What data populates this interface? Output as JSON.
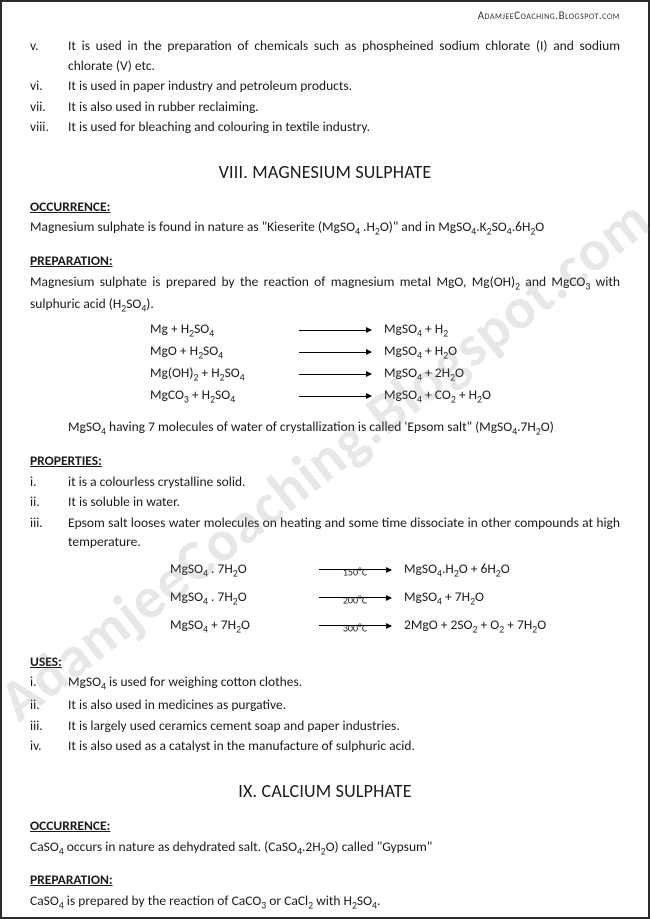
{
  "header_url": "AdamjeeCoaching.Blogspot.com",
  "watermark": "AdamjeeCoaching.Blogspot.com",
  "top_list": [
    {
      "num": "v.",
      "text": "It is used in the preparation of chemicals such as phospheined sodium chlorate (I) and sodium chlorate (V) etc."
    },
    {
      "num": "vi.",
      "text": "It is used in paper industry and petroleum products."
    },
    {
      "num": "vii.",
      "text": "It is also used in rubber reclaiming."
    },
    {
      "num": "viii.",
      "text": "It is used for bleaching and colouring in textile industry."
    }
  ],
  "section8": {
    "title": "VIII. MAGNESIUM SULPHATE",
    "occurrence_head": "OCCURRENCE:",
    "occurrence_text": "Magnesium sulphate is found in nature as \"Kieserite (MgSO4 .H2O)\" and in MgSO4.K2SO4.6H2O",
    "preparation_head": "PREPARATION:",
    "preparation_text": "Magnesium sulphate is prepared by the reaction of magnesium metal MgO, Mg(OH)2 and MgCO3 with sulphuric acid (H2SO4).",
    "equations": [
      {
        "left": "Mg + H2SO4",
        "right": "MgSO4 + H2"
      },
      {
        "left": "MgO + H2SO4",
        "right": "MgSO4 + H2O"
      },
      {
        "left": "Mg(OH)2 + H2SO4",
        "right": "MgSO4 + 2H2O"
      },
      {
        "left": "MgCO3 + H2SO4",
        "right": "MgSO4 + CO2 + H2O"
      }
    ],
    "note": "MgSO4 having 7 molecules of water of crystallization is called 'Epsom salt\" (MgSO4.7H2O)",
    "properties_head": "PROPERTIES:",
    "properties": [
      {
        "num": "i.",
        "text": "it is a colourless crystalline solid."
      },
      {
        "num": "ii.",
        "text": "It is soluble in water."
      },
      {
        "num": "iii.",
        "text": "Epsom salt looses water molecules on heating and some time dissociate in other compounds at high temperature."
      }
    ],
    "equations2": [
      {
        "left": "MgSO4 . 7H2O",
        "label": "150°C",
        "right": "MgSO4.H2O + 6H2O"
      },
      {
        "left": "MgSO4 . 7H2O",
        "label": "200°C",
        "right": "MgSO4 + 7H2O"
      },
      {
        "left": "MgSO4 + 7H2O",
        "label": "300°C",
        "right": "2MgO + 2SO2 + O2 + 7H2O"
      }
    ],
    "uses_head": "USES:",
    "uses": [
      {
        "num": "i.",
        "text": "MgSO4 is used for weighing cotton clothes."
      },
      {
        "num": "ii.",
        "text": "It is also used in medicines as purgative."
      },
      {
        "num": "iii.",
        "text": "It is largely used ceramics cement soap and paper industries."
      },
      {
        "num": "iv.",
        "text": "It is also used as a catalyst in the manufacture of sulphuric acid."
      }
    ]
  },
  "section9": {
    "title": "IX.   CALCIUM SULPHATE",
    "occurrence_head": "OCCURRENCE:",
    "occurrence_text": "CaSO4 occurs in nature as dehydrated salt. (CaSO4.2H2O) called \"Gypsum\"",
    "preparation_head": "PREPARATION:",
    "preparation_text": "CaSO4 is prepared by the reaction of CaCO3 or CaCl2 with H2SO4."
  }
}
